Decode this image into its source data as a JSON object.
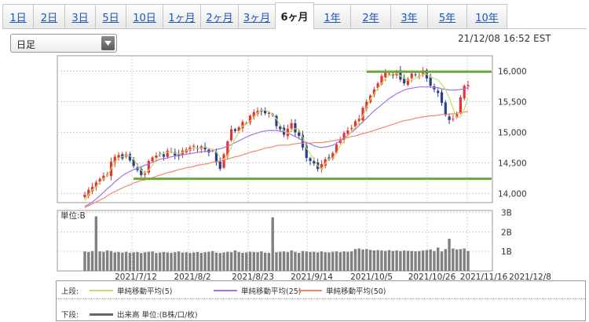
{
  "tabs": [
    {
      "label": "1日",
      "active": false
    },
    {
      "label": "2日",
      "active": false
    },
    {
      "label": "3日",
      "active": false
    },
    {
      "label": "5日",
      "active": false
    },
    {
      "label": "10日",
      "active": false
    },
    {
      "label": "1ヶ月",
      "active": false
    },
    {
      "label": "2ヶ月",
      "active": false
    },
    {
      "label": "3ヶ月",
      "active": false
    },
    {
      "label": "6ヶ月",
      "active": true
    },
    {
      "label": "1年",
      "active": false
    },
    {
      "label": "2年",
      "active": false
    },
    {
      "label": "3年",
      "active": false
    },
    {
      "label": "5年",
      "active": false
    },
    {
      "label": "10年",
      "active": false
    }
  ],
  "select": {
    "value": "日足",
    "icon": "dropdown-arrow-icon"
  },
  "timestamp": "21/12/08 16:52 EST",
  "chart_data": {
    "type": "candlestick",
    "price_axis": {
      "ticks": [
        "16,000",
        "15,500",
        "15,000",
        "14,500",
        "14,000"
      ],
      "ylim": [
        13850,
        16250
      ]
    },
    "volume_axis": {
      "unit_label": "単位:B",
      "ticks": [
        "3B",
        "2B",
        "1B"
      ],
      "ylim": [
        0,
        3.1
      ]
    },
    "x_tick_labels": [
      "2021/7/12",
      "2021/8/2",
      "2021/8/23",
      "2021/9/14",
      "2021/10/5",
      "2021/10/26",
      "2021/11/16",
      "2021/12/8"
    ],
    "horizontal_lines": [
      15990,
      14240
    ],
    "ma5": [
      13880,
      13980,
      14060,
      14110,
      14180,
      14240,
      14290,
      14400,
      14520,
      14580,
      14600,
      14620,
      14620,
      14560,
      14460,
      14380,
      14330,
      14380,
      14460,
      14560,
      14640,
      14660,
      14670,
      14690,
      14660,
      14640,
      14670,
      14700,
      14720,
      14760,
      14740,
      14740,
      14760,
      14740,
      14720,
      14680,
      14590,
      14560,
      14620,
      14760,
      14900,
      15010,
      15100,
      15130,
      15180,
      15250,
      15320,
      15360,
      15360,
      15340,
      15290,
      15220,
      15120,
      15020,
      14980,
      15030,
      15060,
      15050,
      14920,
      14740,
      14650,
      14560,
      14450,
      14400,
      14490,
      14570,
      14580,
      14660,
      14780,
      14860,
      14940,
      15010,
      15080,
      15160,
      15270,
      15400,
      15540,
      15630,
      15720,
      15800,
      15880,
      15920,
      15950,
      15960,
      15920,
      15880,
      15850,
      15850,
      15880,
      15910,
      15950,
      15950,
      15900,
      15880,
      15860,
      15780,
      15700,
      15560,
      15390,
      15240,
      15250,
      15380,
      15560
    ],
    "ma25": [
      13790,
      13820,
      13860,
      13910,
      13960,
      14020,
      14080,
      14130,
      14190,
      14240,
      14290,
      14330,
      14360,
      14390,
      14410,
      14440,
      14460,
      14480,
      14510,
      14530,
      14560,
      14570,
      14580,
      14600,
      14610,
      14620,
      14630,
      14640,
      14650,
      14660,
      14670,
      14680,
      14690,
      14690,
      14700,
      14720,
      14730,
      14750,
      14770,
      14800,
      14830,
      14860,
      14890,
      14920,
      14950,
      14970,
      14990,
      15010,
      15020,
      15030,
      15030,
      15030,
      15020,
      15010,
      14990,
      14960,
      14930,
      14900,
      14860,
      14830,
      14810,
      14780,
      14760,
      14750,
      14760,
      14770,
      14790,
      14820,
      14860,
      14900,
      14950,
      15000,
      15050,
      15110,
      15170,
      15230,
      15290,
      15350,
      15400,
      15450,
      15500,
      15550,
      15590,
      15630,
      15660,
      15690,
      15710,
      15720,
      15730,
      15740,
      15740,
      15740,
      15740,
      15730,
      15730,
      15710,
      15700,
      15690,
      15690,
      15690,
      15700,
      15710,
      15730
    ],
    "ma50": [
      13770,
      13800,
      13830,
      13860,
      13890,
      13920,
      13960,
      14000,
      14030,
      14060,
      14090,
      14120,
      14140,
      14170,
      14190,
      14210,
      14220,
      14240,
      14260,
      14280,
      14300,
      14320,
      14340,
      14350,
      14370,
      14390,
      14400,
      14420,
      14430,
      14440,
      14460,
      14470,
      14480,
      14490,
      14510,
      14520,
      14530,
      14550,
      14560,
      14580,
      14600,
      14610,
      14630,
      14650,
      14670,
      14690,
      14700,
      14720,
      14740,
      14750,
      14760,
      14780,
      14790,
      14790,
      14790,
      14800,
      14810,
      14820,
      14820,
      14820,
      14820,
      14830,
      14830,
      14830,
      14840,
      14850,
      14860,
      14870,
      14880,
      14900,
      14910,
      14930,
      14940,
      14960,
      14980,
      14990,
      15010,
      15030,
      15050,
      15070,
      15090,
      15110,
      15130,
      15150,
      15170,
      15190,
      15200,
      15210,
      15230,
      15240,
      15250,
      15260,
      15270,
      15270,
      15280,
      15290,
      15290,
      15300,
      15300,
      15310,
      15320,
      15330,
      15340
    ],
    "closes": [
      13980,
      14060,
      14110,
      14180,
      14240,
      14290,
      14310,
      14520,
      14600,
      14630,
      14570,
      14640,
      14540,
      14450,
      14380,
      14300,
      14330,
      14530,
      14590,
      14620,
      14640,
      14600,
      14700,
      14690,
      14620,
      14610,
      14700,
      14720,
      14750,
      14780,
      14730,
      14770,
      14720,
      14670,
      14700,
      14510,
      14400,
      14640,
      14850,
      15050,
      15020,
      15080,
      15170,
      15150,
      15270,
      15330,
      15350,
      15340,
      15310,
      15320,
      15280,
      15100,
      15050,
      14960,
      15060,
      15150,
      15000,
      14940,
      14750,
      14580,
      14530,
      14490,
      14400,
      14480,
      14560,
      14560,
      14660,
      14800,
      14880,
      14990,
      15030,
      15070,
      15180,
      15220,
      15400,
      15500,
      15600,
      15700,
      15800,
      15920,
      15980,
      15960,
      15930,
      15990,
      15860,
      15800,
      15870,
      15960,
      15940,
      15920,
      16010,
      15880,
      15760,
      15700,
      15640,
      15480,
      15280,
      15200,
      15220,
      15300,
      15570,
      15760,
      15770
    ],
    "volume": [
      1.0,
      0.97,
      1.02,
      2.8,
      1.0,
      0.98,
      1.05,
      1.02,
      0.95,
      0.97,
      0.94,
      0.98,
      0.93,
      0.95,
      0.97,
      0.92,
      0.96,
      0.98,
      1.0,
      0.92,
      0.94,
      0.97,
      0.95,
      0.93,
      0.96,
      1.0,
      0.94,
      0.96,
      0.92,
      0.95,
      0.97,
      0.93,
      0.96,
      0.98,
      1.02,
      0.94,
      0.92,
      0.95,
      0.98,
      0.96,
      1.05,
      0.97,
      0.93,
      0.95,
      0.98,
      0.97,
      0.96,
      1.0,
      0.94,
      0.93,
      2.75,
      0.96,
      0.98,
      1.0,
      0.97,
      1.05,
      0.98,
      0.93,
      1.02,
      1.0,
      0.97,
      0.98,
      0.95,
      1.0,
      0.96,
      0.95,
      0.98,
      1.0,
      0.96,
      1.0,
      0.98,
      1.0,
      1.12,
      1.15,
      1.1,
      1.12,
      1.08,
      1.05,
      1.07,
      1.05,
      1.03,
      1.07,
      1.02,
      1.05,
      1.02,
      1.05,
      1.03,
      1.02,
      1.0,
      1.02,
      1.05,
      1.07,
      1.1,
      1.02,
      1.2,
      1.0,
      1.12,
      1.65,
      1.15,
      1.1,
      1.12,
      1.15,
      1.02
    ],
    "seed": 7
  },
  "legend": {
    "upper_label": "上段:",
    "lower_label": "下段:",
    "items": [
      {
        "label": "単純移動平均(5)",
        "color": "#c6dc6a"
      },
      {
        "label": "単純移動平均(25)",
        "color": "#a674dd"
      },
      {
        "label": "単純移動平均(50)",
        "color": "#f08a6a"
      }
    ],
    "volume_item": {
      "label": "出来高 単位:(B株/口/枚)",
      "color": "#666666"
    }
  },
  "colors": {
    "up": "#e63333",
    "down": "#2b3f8e",
    "hline": "#6ca83a",
    "grid": "#d0d0d0",
    "border": "#999999"
  }
}
